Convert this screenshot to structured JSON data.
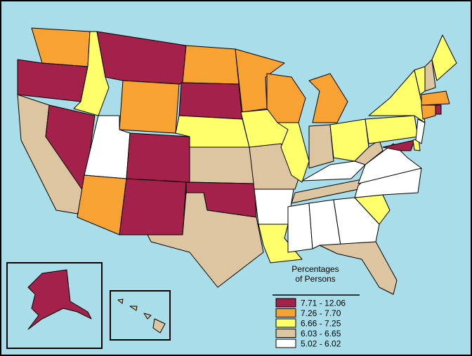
{
  "legend": {
    "title": "Percentages\nof Persons",
    "items": [
      {
        "label": "7.71 - 12.06",
        "color": "#a3214b"
      },
      {
        "label": "7.26 - 7.70",
        "color": "#f9a234"
      },
      {
        "label": "6.66 - 7.25",
        "color": "#ffff6b"
      },
      {
        "label": "6.03 - 6.65",
        "color": "#dcc5a0"
      },
      {
        "label": "5.02 - 6.02",
        "color": "#ffffff"
      }
    ]
  }
}
